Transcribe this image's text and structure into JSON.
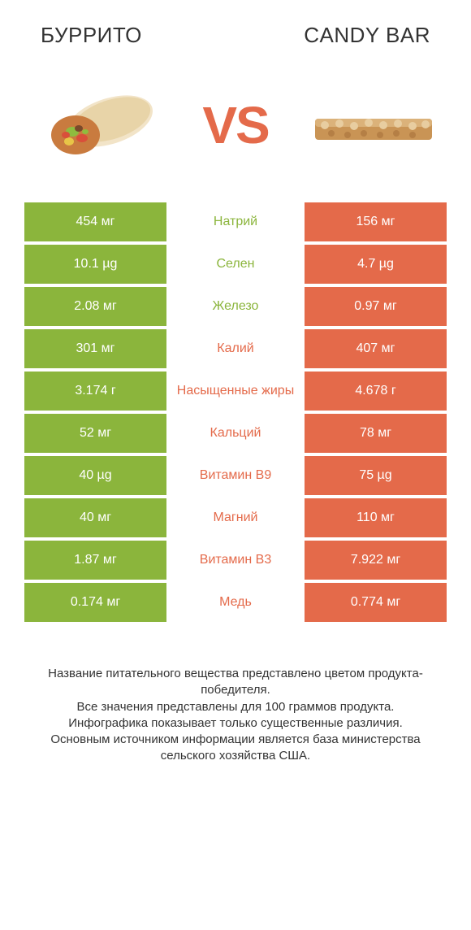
{
  "header": {
    "left_title": "БУРРИТО",
    "right_title": "CANDY BAR"
  },
  "vs_label": "VS",
  "colors": {
    "green": "#8bb53c",
    "orange": "#e46a4a",
    "text_dark": "#333333",
    "background": "#ffffff"
  },
  "rows": [
    {
      "left": "454 мг",
      "nutrient": "Натрий",
      "right": "156 мг",
      "winner": "left"
    },
    {
      "left": "10.1 µg",
      "nutrient": "Селен",
      "right": "4.7 µg",
      "winner": "left"
    },
    {
      "left": "2.08 мг",
      "nutrient": "Железо",
      "right": "0.97 мг",
      "winner": "left"
    },
    {
      "left": "301 мг",
      "nutrient": "Калий",
      "right": "407 мг",
      "winner": "right"
    },
    {
      "left": "3.174 г",
      "nutrient": "Насыщенные жиры",
      "right": "4.678 г",
      "winner": "right"
    },
    {
      "left": "52 мг",
      "nutrient": "Кальций",
      "right": "78 мг",
      "winner": "right"
    },
    {
      "left": "40 µg",
      "nutrient": "Витамин B9",
      "right": "75 µg",
      "winner": "right"
    },
    {
      "left": "40 мг",
      "nutrient": "Магний",
      "right": "110 мг",
      "winner": "right"
    },
    {
      "left": "1.87 мг",
      "nutrient": "Витамин B3",
      "right": "7.922 мг",
      "winner": "right"
    },
    {
      "left": "0.174 мг",
      "nutrient": "Медь",
      "right": "0.774 мг",
      "winner": "right"
    }
  ],
  "footer_lines": [
    "Название питательного вещества представлено цветом продукта-победителя.",
    "Все значения представлены для 100 граммов продукта.",
    "Инфографика показывает только существенные различия.",
    "Основным источником информации является база министерства сельского хозяйства США."
  ]
}
